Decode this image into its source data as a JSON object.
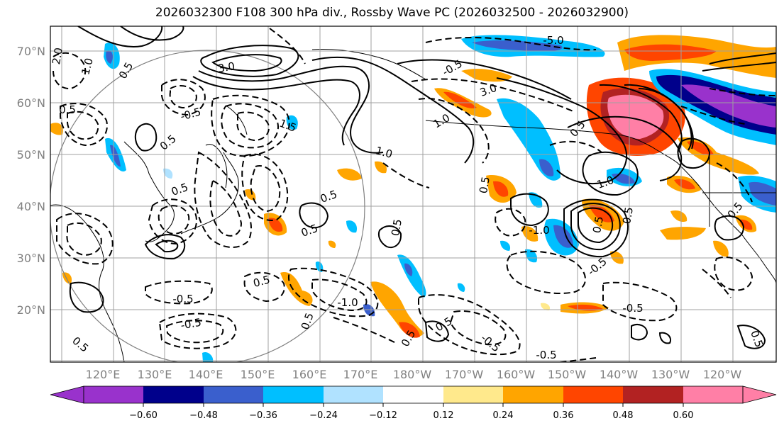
{
  "title": "2026032300 F108 300 hPa div., Rossby Wave PC (2026032500 - 2026032900)",
  "map": {
    "lat_labels": [
      "70°N",
      "60°N",
      "50°N",
      "40°N",
      "30°N",
      "20°N"
    ],
    "lon_labels": [
      "120°E",
      "130°E",
      "140°E",
      "150°E",
      "160°E",
      "170°E",
      "180°W",
      "170°W",
      "160°W",
      "150°W",
      "140°W",
      "130°W",
      "120°W"
    ],
    "contour_labels": [
      "2.0",
      "1.0",
      "0.5",
      "3.0",
      "0.5",
      "-0.5",
      "1.5",
      "1.0",
      "0.5",
      "0.5",
      "0.5",
      "0.5",
      "0.5",
      "-0.5",
      "-0.5",
      "-1.0",
      "0.5",
      "0.5",
      "0.5",
      "1.0",
      "-5.0",
      "3.0",
      "-0.5",
      "0.5",
      "0.5",
      "-1.0",
      "0.5",
      "0.5",
      "1.0",
      "-0.5",
      "-0.5",
      "0.5",
      "0.5",
      "-0.5",
      "0.5",
      "-0.5",
      "0.5"
    ]
  },
  "colorbar": {
    "ticks": [
      "−0.60",
      "−0.48",
      "−0.36",
      "−0.24",
      "−0.12",
      "0.12",
      "0.24",
      "0.36",
      "0.48",
      "0.60"
    ],
    "colors": [
      "#9932cc",
      "#00008b",
      "#3a5fcd",
      "#00bfff",
      "#b0e2ff",
      "#ffffff",
      "#ffe98c",
      "#ffa500",
      "#ff4500",
      "#b22222",
      "#ff7fa6",
      "#ff7fa6"
    ]
  },
  "chart_data": {
    "type": "map",
    "title": "2026032300 F108 300 hPa div., Rossby Wave PC (2026032500 - 2026032900)",
    "region_lat_range": [
      10,
      75
    ],
    "region_lon_range_label": "120°E to 120°W",
    "colorbar_levels": [
      -0.6,
      -0.48,
      -0.36,
      -0.24,
      -0.12,
      0.12,
      0.24,
      0.36,
      0.48,
      0.6
    ],
    "contour_levels_shown": [
      -5.0,
      -1.0,
      -0.5,
      0.5,
      1.0,
      1.5,
      2.0,
      3.0
    ]
  }
}
